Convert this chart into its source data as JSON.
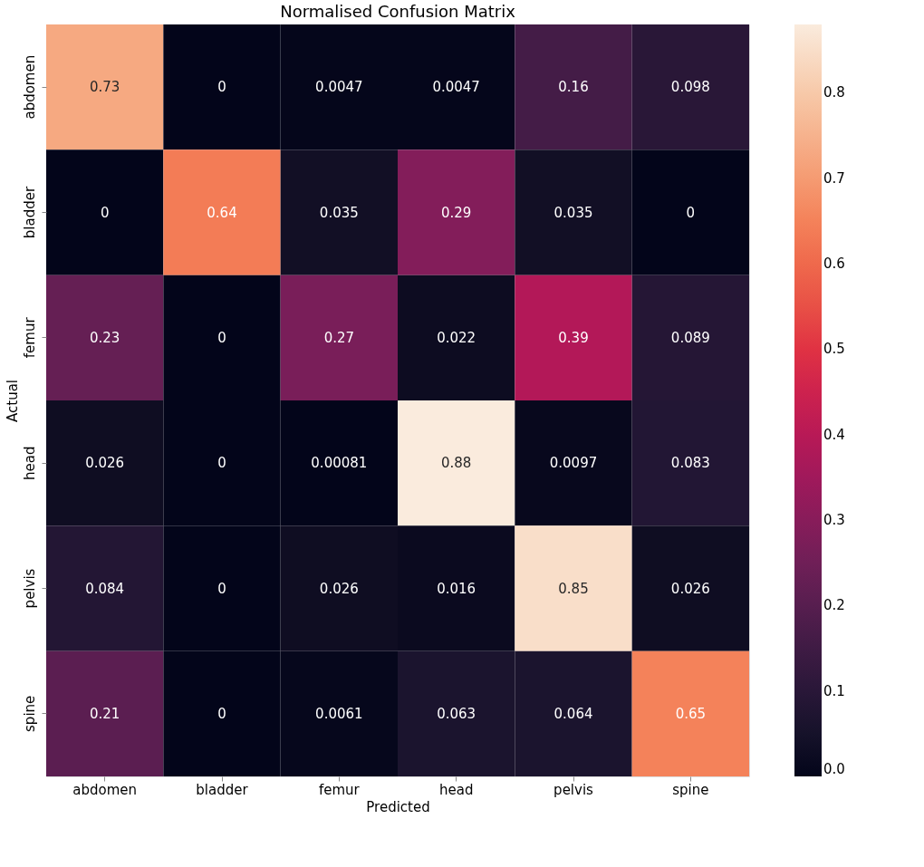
{
  "chart_data": {
    "type": "heatmap",
    "title": "Normalised Confusion Matrix",
    "xlabel": "Predicted",
    "ylabel": "Actual",
    "categories": [
      "abdomen",
      "bladder",
      "femur",
      "head",
      "pelvis",
      "spine"
    ],
    "y_categories": [
      "abdomen",
      "bladder",
      "femur",
      "head",
      "pelvis",
      "spine"
    ],
    "cells": [
      [
        0.73,
        0,
        0.0047,
        0.0047,
        0.16,
        0.098
      ],
      [
        0,
        0.64,
        0.035,
        0.29,
        0.035,
        0
      ],
      [
        0.23,
        0,
        0.27,
        0.022,
        0.39,
        0.089
      ],
      [
        0.026,
        0,
        0.00081,
        0.88,
        0.0097,
        0.083
      ],
      [
        0.084,
        0,
        0.026,
        0.016,
        0.85,
        0.026
      ],
      [
        0.21,
        0,
        0.0061,
        0.063,
        0.064,
        0.65
      ]
    ],
    "data_labels": true,
    "clim": [
      0,
      0.88
    ],
    "cticks": [
      {
        "value": 0,
        "label": "0.0"
      },
      {
        "value": 0.1,
        "label": "0.1"
      },
      {
        "value": 0.2,
        "label": "0.2"
      },
      {
        "value": 0.3,
        "label": "0.3"
      },
      {
        "value": 0.4,
        "label": "0.4"
      },
      {
        "value": 0.5,
        "label": "0.5"
      },
      {
        "value": 0.6,
        "label": "0.6"
      },
      {
        "value": 0.7,
        "label": "0.7"
      },
      {
        "value": 0.8,
        "label": "0.8"
      }
    ]
  }
}
